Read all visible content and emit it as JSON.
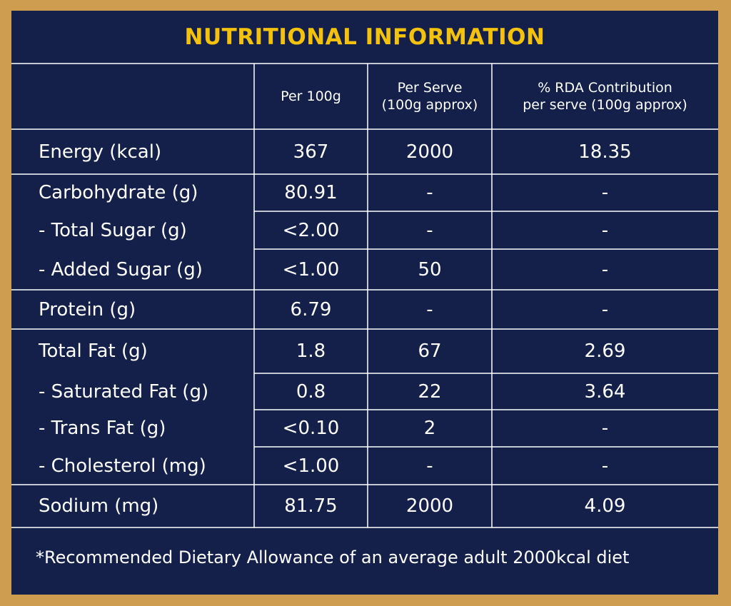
{
  "title": "NUTRITIONAL INFORMATION",
  "header": {
    "col1": "Per 100g",
    "col2_line1": "Per Serve",
    "col2_line2": "(100g approx)",
    "col3_line1": "% RDA Contribution",
    "col3_line2": "per serve (100g approx)"
  },
  "rows": [
    {
      "label": "Energy (kcal)",
      "per100": "367",
      "serve": "2000",
      "rda": "18.35"
    },
    {
      "label": "Carbohydrate (g)",
      "per100": "80.91",
      "serve": "-",
      "rda": "-"
    },
    {
      "label": "- Total Sugar (g)",
      "per100": "<2.00",
      "serve": "-",
      "rda": "-"
    },
    {
      "label": "- Added Sugar (g)",
      "per100": "<1.00",
      "serve": "50",
      "rda": "-"
    },
    {
      "label": "Protein (g)",
      "per100": "6.79",
      "serve": "-",
      "rda": "-"
    },
    {
      "label": "Total Fat (g)",
      "per100": "1.8",
      "serve": "67",
      "rda": "2.69"
    },
    {
      "label": "- Saturated Fat (g)",
      "per100": "0.8",
      "serve": "22",
      "rda": "3.64"
    },
    {
      "label": "- Trans Fat (g)",
      "per100": "<0.10",
      "serve": "2",
      "rda": "-"
    },
    {
      "label": "- Cholesterol (mg)",
      "per100": "<1.00",
      "serve": "-",
      "rda": "-"
    },
    {
      "label": "Sodium (mg)",
      "per100": "81.75",
      "serve": "2000",
      "rda": "4.09"
    }
  ],
  "footnote": "*Recommended Dietary Allowance of an average adult 2000kcal diet",
  "colors": {
    "border": "#cf9d4f",
    "panel": "#14204a",
    "title": "#f4c20d",
    "lines": "#ffffff"
  }
}
